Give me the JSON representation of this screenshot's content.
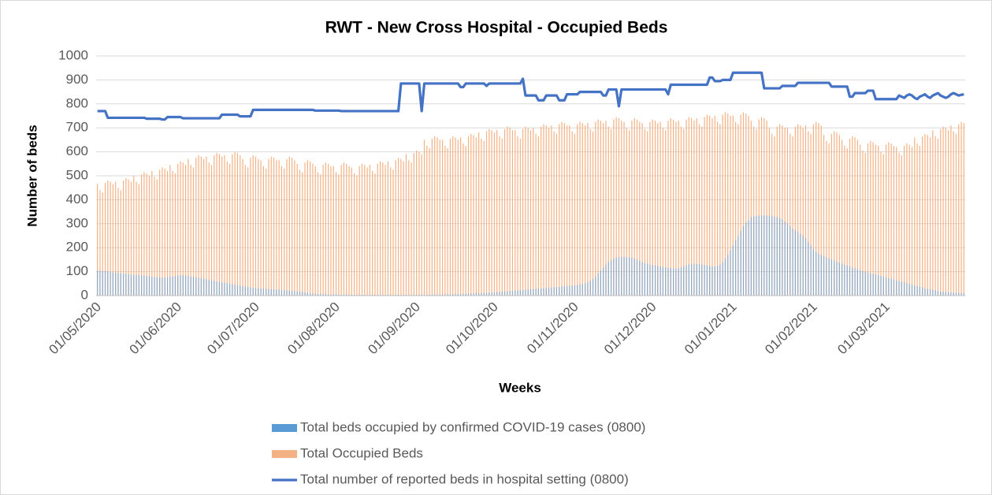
{
  "chart_data": {
    "type": "bar",
    "title": "RWT - New Cross Hospital - Occupied Beds",
    "x_label": "Weeks",
    "y_label": "Number of beds",
    "ylim": [
      0,
      1000
    ],
    "yticks": [
      0,
      100,
      200,
      300,
      400,
      500,
      600,
      700,
      800,
      900,
      1000
    ],
    "grid": true,
    "legend": "bottom",
    "categories": [
      "01/05/2020",
      null,
      null,
      null,
      null,
      null,
      null,
      null,
      null,
      null,
      null,
      null,
      null,
      null,
      null,
      null,
      null,
      null,
      null,
      null,
      null,
      null,
      null,
      null,
      null,
      null,
      null,
      null,
      null,
      null,
      null,
      "01/06/2020",
      null,
      null,
      null,
      null,
      null,
      null,
      null,
      null,
      null,
      null,
      null,
      null,
      null,
      null,
      null,
      null,
      null,
      null,
      null,
      null,
      null,
      null,
      null,
      null,
      null,
      null,
      null,
      null,
      null,
      "01/07/2020",
      null,
      null,
      null,
      null,
      null,
      null,
      null,
      null,
      null,
      null,
      null,
      null,
      null,
      null,
      null,
      null,
      null,
      null,
      null,
      null,
      null,
      null,
      null,
      null,
      null,
      null,
      null,
      null,
      null,
      null,
      "01/08/2020",
      null,
      null,
      null,
      null,
      null,
      null,
      null,
      null,
      null,
      null,
      null,
      null,
      null,
      null,
      null,
      null,
      null,
      null,
      null,
      null,
      null,
      null,
      null,
      null,
      null,
      null,
      null,
      null,
      null,
      null,
      "01/09/2020",
      null,
      null,
      null,
      null,
      null,
      null,
      null,
      null,
      null,
      null,
      null,
      null,
      null,
      null,
      null,
      null,
      null,
      null,
      null,
      null,
      null,
      null,
      null,
      null,
      null,
      null,
      null,
      null,
      null,
      "01/10/2020",
      null,
      null,
      null,
      null,
      null,
      null,
      null,
      null,
      null,
      null,
      null,
      null,
      null,
      null,
      null,
      null,
      null,
      null,
      null,
      null,
      null,
      null,
      null,
      null,
      null,
      null,
      null,
      null,
      null,
      null,
      "01/11/2020",
      null,
      null,
      null,
      null,
      null,
      null,
      null,
      null,
      null,
      null,
      null,
      null,
      null,
      null,
      null,
      null,
      null,
      null,
      null,
      null,
      null,
      null,
      null,
      null,
      null,
      null,
      null,
      null,
      null,
      "01/12/2020",
      null,
      null,
      null,
      null,
      null,
      null,
      null,
      null,
      null,
      null,
      null,
      null,
      null,
      null,
      null,
      null,
      null,
      null,
      null,
      null,
      null,
      null,
      null,
      null,
      null,
      null,
      null,
      null,
      null,
      null,
      "01/01/2021",
      null,
      null,
      null,
      null,
      null,
      null,
      null,
      null,
      null,
      null,
      null,
      null,
      null,
      null,
      null,
      null,
      null,
      null,
      null,
      null,
      null,
      null,
      null,
      null,
      null,
      null,
      null,
      null,
      null,
      null,
      "01/02/2021",
      null,
      null,
      null,
      null,
      null,
      null,
      null,
      null,
      null,
      null,
      null,
      null,
      null,
      null,
      null,
      null,
      null,
      null,
      null,
      null,
      null,
      null,
      null,
      null,
      null,
      null,
      null,
      "01/03/2021",
      null,
      null,
      null,
      null,
      null,
      null,
      null,
      null,
      null,
      null,
      null,
      null,
      null,
      null,
      null,
      null,
      null,
      null,
      null,
      null,
      null,
      null,
      null,
      null,
      null,
      null,
      null,
      null,
      null,
      null
    ],
    "series": [
      {
        "name": "Total beds occupied by confirmed COVID-19 cases (0800)",
        "color": "#8ea9c8",
        "legend_color": "#5b9bd5",
        "values": [
          105,
          104,
          103,
          102,
          100,
          99,
          97,
          96,
          95,
          93,
          92,
          90,
          89,
          88,
          87,
          86,
          85,
          84,
          83,
          82,
          80,
          79,
          78,
          77,
          76,
          75,
          75,
          76,
          78,
          80,
          82,
          84,
          85,
          85,
          84,
          82,
          80,
          78,
          76,
          74,
          72,
          70,
          68,
          66,
          64,
          62,
          60,
          58,
          56,
          54,
          52,
          50,
          48,
          46,
          44,
          42,
          40,
          38,
          36,
          34,
          33,
          32,
          31,
          30,
          29,
          28,
          27,
          26,
          26,
          25,
          25,
          24,
          23,
          22,
          21,
          20,
          19,
          18,
          17,
          16,
          14,
          12,
          10,
          9,
          8,
          7,
          7,
          6,
          6,
          5,
          5,
          5,
          5,
          4,
          4,
          4,
          4,
          4,
          3,
          3,
          3,
          3,
          3,
          3,
          3,
          3,
          3,
          3,
          3,
          3,
          3,
          3,
          3,
          3,
          3,
          3,
          3,
          3,
          3,
          3,
          3,
          3,
          3,
          3,
          3,
          3,
          3,
          3,
          4,
          4,
          4,
          4,
          4,
          4,
          5,
          5,
          5,
          6,
          6,
          6,
          7,
          7,
          8,
          8,
          9,
          9,
          10,
          10,
          11,
          11,
          12,
          12,
          13,
          13,
          14,
          15,
          16,
          17,
          18,
          19,
          20,
          21,
          22,
          23,
          24,
          25,
          25,
          26,
          27,
          28,
          29,
          30,
          31,
          32,
          33,
          34,
          35,
          36,
          37,
          38,
          39,
          40,
          41,
          42,
          43,
          45,
          47,
          49,
          52,
          56,
          62,
          70,
          80,
          92,
          105,
          118,
          130,
          140,
          148,
          154,
          158,
          160,
          161,
          162,
          161,
          160,
          158,
          155,
          150,
          145,
          140,
          136,
          132,
          130,
          128,
          126,
          124,
          122,
          120,
          118,
          116,
          115,
          114,
          113,
          115,
          118,
          122,
          126,
          130,
          132,
          133,
          132,
          131,
          130,
          128,
          126,
          124,
          122,
          122,
          124,
          128,
          140,
          155,
          170,
          190,
          210,
          230,
          250,
          270,
          290,
          305,
          315,
          328,
          330,
          332,
          334,
          335,
          335,
          334,
          333,
          332,
          330,
          328,
          324,
          318,
          310,
          300,
          290,
          280,
          272,
          265,
          258,
          250,
          240,
          225,
          210,
          195,
          182,
          175,
          170,
          165,
          160,
          155,
          150,
          146,
          142,
          138,
          134,
          130,
          126,
          122,
          118,
          114,
          110,
          106,
          103,
          100,
          97,
          94,
          91,
          88,
          85,
          82,
          79,
          76,
          73,
          70,
          67,
          64,
          61,
          58,
          55,
          52,
          49,
          46,
          43,
          40,
          37,
          34,
          31,
          28,
          26,
          24,
          22,
          20,
          18,
          17,
          16,
          15,
          14,
          13,
          12,
          12,
          11,
          11
        ]
      },
      {
        "name": "Total Occupied Beds",
        "color": "#f4b183",
        "values": [
          465,
          440,
          430,
          470,
          480,
          475,
          465,
          475,
          450,
          440,
          480,
          490,
          485,
          475,
          500,
          475,
          465,
          505,
          515,
          510,
          500,
          520,
          495,
          485,
          525,
          535,
          530,
          520,
          545,
          520,
          510,
          550,
          560,
          555,
          545,
          570,
          545,
          535,
          575,
          585,
          580,
          570,
          580,
          555,
          545,
          585,
          595,
          590,
          580,
          585,
          560,
          550,
          590,
          600,
          595,
          585,
          570,
          545,
          535,
          575,
          585,
          580,
          570,
          565,
          540,
          530,
          570,
          580,
          575,
          565,
          565,
          540,
          530,
          570,
          580,
          575,
          565,
          550,
          525,
          515,
          555,
          565,
          560,
          550,
          540,
          515,
          505,
          545,
          555,
          550,
          540,
          540,
          515,
          505,
          545,
          555,
          550,
          540,
          535,
          510,
          500,
          540,
          550,
          545,
          535,
          545,
          520,
          510,
          550,
          560,
          555,
          545,
          560,
          535,
          525,
          565,
          575,
          570,
          560,
          590,
          565,
          555,
          595,
          605,
          600,
          590,
          650,
          625,
          615,
          655,
          665,
          660,
          650,
          650,
          625,
          615,
          655,
          665,
          660,
          650,
          660,
          635,
          625,
          665,
          675,
          670,
          660,
          680,
          655,
          645,
          685,
          695,
          690,
          680,
          690,
          665,
          655,
          695,
          705,
          700,
          690,
          690,
          665,
          655,
          695,
          705,
          700,
          690,
          700,
          675,
          665,
          705,
          715,
          710,
          700,
          710,
          685,
          675,
          715,
          725,
          720,
          710,
          710,
          685,
          675,
          715,
          725,
          720,
          710,
          720,
          695,
          685,
          725,
          735,
          730,
          720,
          730,
          705,
          695,
          735,
          745,
          740,
          730,
          725,
          700,
          690,
          730,
          740,
          735,
          725,
          720,
          695,
          685,
          725,
          735,
          730,
          720,
          725,
          700,
          690,
          730,
          740,
          735,
          725,
          730,
          705,
          695,
          735,
          745,
          740,
          730,
          740,
          715,
          705,
          745,
          755,
          750,
          740,
          750,
          725,
          715,
          755,
          765,
          760,
          750,
          750,
          725,
          715,
          755,
          765,
          760,
          750,
          730,
          705,
          695,
          735,
          745,
          740,
          730,
          700,
          675,
          665,
          705,
          715,
          710,
          700,
          700,
          675,
          665,
          705,
          715,
          710,
          700,
          710,
          685,
          675,
          715,
          725,
          720,
          710,
          670,
          645,
          635,
          675,
          685,
          680,
          670,
          650,
          625,
          615,
          655,
          665,
          660,
          650,
          630,
          605,
          595,
          635,
          645,
          640,
          630,
          625,
          600,
          590,
          630,
          640,
          635,
          625,
          620,
          595,
          585,
          625,
          635,
          630,
          620,
          660,
          635,
          625,
          665,
          675,
          670,
          660,
          690,
          665,
          655,
          695,
          705,
          700,
          690,
          710,
          685,
          675,
          715,
          725,
          720
        ]
      },
      {
        "name": "Total number of reported beds in hospital setting (0800)",
        "color": "#4472c4",
        "type": "line",
        "values": [
          770,
          770,
          770,
          770,
          742,
          742,
          742,
          742,
          742,
          742,
          742,
          742,
          742,
          742,
          742,
          742,
          742,
          742,
          742,
          738,
          738,
          738,
          738,
          738,
          738,
          735,
          735,
          745,
          745,
          745,
          745,
          745,
          745,
          740,
          740,
          740,
          740,
          740,
          740,
          740,
          740,
          740,
          740,
          740,
          740,
          740,
          740,
          740,
          755,
          755,
          755,
          755,
          755,
          755,
          755,
          748,
          748,
          748,
          748,
          748,
          775,
          775,
          775,
          775,
          775,
          775,
          775,
          775,
          775,
          775,
          775,
          775,
          775,
          775,
          775,
          775,
          775,
          775,
          775,
          775,
          775,
          775,
          775,
          775,
          772,
          772,
          772,
          772,
          772,
          772,
          772,
          772,
          772,
          772,
          770,
          770,
          770,
          770,
          770,
          770,
          770,
          770,
          770,
          770,
          770,
          770,
          770,
          770,
          770,
          770,
          770,
          770,
          770,
          770,
          770,
          770,
          770,
          885,
          885,
          885,
          885,
          885,
          885,
          885,
          885,
          770,
          885,
          885,
          885,
          885,
          885,
          885,
          885,
          885,
          885,
          885,
          885,
          885,
          885,
          885,
          870,
          870,
          885,
          885,
          885,
          885,
          885,
          885,
          885,
          885,
          875,
          885,
          885,
          885,
          885,
          885,
          885,
          885,
          885,
          885,
          885,
          885,
          885,
          885,
          905,
          835,
          835,
          835,
          835,
          835,
          815,
          815,
          815,
          835,
          835,
          835,
          835,
          835,
          815,
          815,
          815,
          840,
          840,
          840,
          840,
          840,
          850,
          850,
          850,
          850,
          850,
          850,
          850,
          850,
          850,
          835,
          835,
          860,
          860,
          860,
          860,
          790,
          860,
          860,
          860,
          860,
          860,
          860,
          860,
          860,
          860,
          860,
          860,
          860,
          860,
          860,
          860,
          860,
          860,
          860,
          840,
          880,
          880,
          880,
          880,
          880,
          880,
          880,
          880,
          880,
          880,
          880,
          880,
          880,
          880,
          880,
          910,
          910,
          895,
          895,
          895,
          900,
          900,
          900,
          900,
          930,
          930,
          930,
          930,
          930,
          930,
          930,
          930,
          930,
          930,
          930,
          930,
          865,
          865,
          865,
          865,
          865,
          865,
          865,
          875,
          875,
          875,
          875,
          875,
          875,
          888,
          888,
          888,
          888,
          888,
          888,
          888,
          888,
          888,
          888,
          888,
          888,
          888,
          872,
          872,
          872,
          872,
          872,
          872,
          872,
          830,
          830,
          845,
          845,
          845,
          845,
          845,
          855,
          855,
          855,
          820,
          820,
          820,
          820,
          820,
          820,
          820,
          820,
          820,
          835,
          830,
          825,
          835,
          840,
          835,
          825,
          820,
          830,
          835,
          840,
          830,
          825,
          835,
          840,
          845,
          835,
          830,
          825,
          830,
          840,
          845,
          840,
          835,
          838,
          840
        ]
      }
    ]
  }
}
